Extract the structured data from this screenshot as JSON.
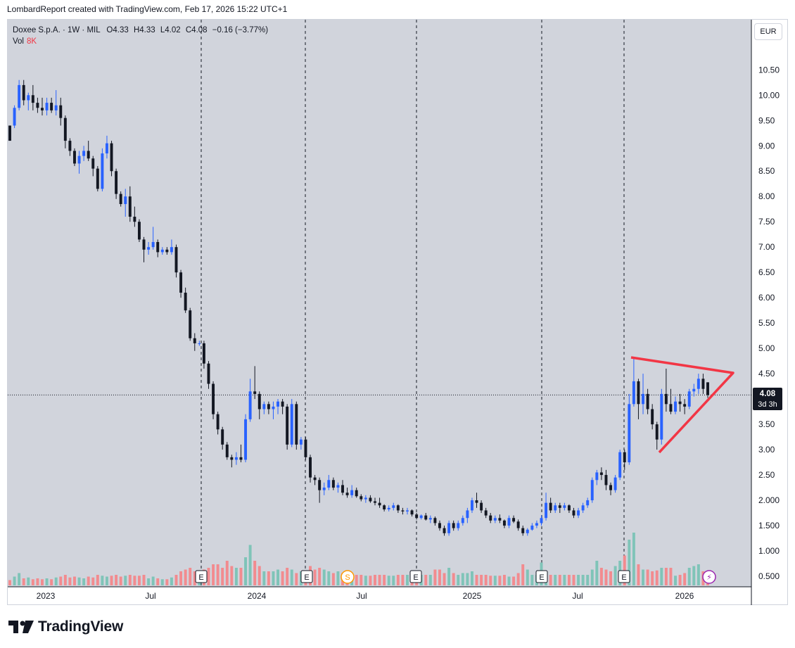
{
  "header": {
    "created_by": "LombardReport created with TradingView.com, Feb 17, 2026 15:22 UTC+1"
  },
  "legend": {
    "symbol": "Doxee S.p.A. · 1W · MIL",
    "open_label": "O",
    "open": "4.33",
    "high_label": "H",
    "high": "4.33",
    "low_label": "L",
    "low": "4.02",
    "close_label": "C",
    "close": "4.08",
    "change": "−0.16 (−3.77%)",
    "vol_label": "Vol",
    "vol_value": "8K"
  },
  "currency_button": "EUR",
  "price_tag": {
    "price": "4.08",
    "countdown": "3d 3h"
  },
  "brand": {
    "name": "TradingView"
  },
  "colors": {
    "up": "#2962ff",
    "down": "#131722",
    "vol_up": "#7fc4b8",
    "vol_down": "#f28b8f",
    "pattern": "#f23645",
    "grid_bg": "#d1d4dc"
  },
  "chart_data": {
    "type": "candlestick",
    "title": "Doxee S.p.A. · 1W · MIL",
    "timeframe": "1W",
    "currency": "EUR",
    "y_range": [
      0.3,
      11.1
    ],
    "y_ticks": [
      "0.500",
      "1.000",
      "1.500",
      "2.000",
      "2.50",
      "3.00",
      "3.50",
      "4.00",
      "4.50",
      "5.00",
      "5.50",
      "6.00",
      "6.50",
      "7.00",
      "7.50",
      "8.00",
      "8.50",
      "9.00",
      "9.50",
      "10.00",
      "10.50"
    ],
    "x_ticks": [
      "2023",
      "Jul",
      "2024",
      "Jul",
      "2025",
      "Jul",
      "2026"
    ],
    "last_price": 4.08,
    "events": [
      {
        "type": "earnings",
        "label": "E",
        "date": "2023-09"
      },
      {
        "type": "earnings",
        "label": "E",
        "date": "2024-03"
      },
      {
        "type": "dividend",
        "label": "S",
        "date": "2024-05"
      },
      {
        "type": "earnings",
        "label": "E",
        "date": "2024-09"
      },
      {
        "type": "earnings",
        "label": "E",
        "date": "2025-03"
      },
      {
        "type": "earnings",
        "label": "E",
        "date": "2025-09"
      },
      {
        "type": "split",
        "label": "⚡",
        "date": "2026-02"
      }
    ],
    "pattern": {
      "type": "symmetrical triangle",
      "upper": [
        [
          4.8,
          "2025-09"
        ],
        [
          4.5,
          "2026-03"
        ]
      ],
      "lower": [
        [
          2.9,
          "2025-11"
        ],
        [
          4.5,
          "2026-03"
        ]
      ]
    },
    "candles": [
      [
        9.4,
        9.4,
        9.1,
        9.1,
        0.3
      ],
      [
        9.4,
        9.8,
        9.35,
        9.75,
        0.5
      ],
      [
        9.75,
        10.3,
        9.7,
        10.2,
        0.7
      ],
      [
        10.2,
        10.3,
        9.8,
        9.9,
        0.4
      ],
      [
        9.9,
        10.05,
        9.7,
        10.0,
        0.45
      ],
      [
        10.0,
        10.2,
        9.7,
        9.85,
        0.35
      ],
      [
        9.85,
        9.95,
        9.65,
        9.75,
        0.4
      ],
      [
        9.75,
        9.95,
        9.6,
        9.7,
        0.35
      ],
      [
        9.7,
        9.95,
        9.6,
        9.85,
        0.4
      ],
      [
        9.85,
        9.95,
        9.65,
        9.7,
        0.35
      ],
      [
        9.7,
        10.1,
        9.6,
        9.8,
        0.45
      ],
      [
        9.8,
        9.95,
        9.4,
        9.55,
        0.5
      ],
      [
        9.55,
        9.6,
        8.95,
        9.1,
        0.6
      ],
      [
        9.1,
        9.15,
        8.8,
        8.9,
        0.45
      ],
      [
        8.9,
        8.95,
        8.6,
        8.65,
        0.5
      ],
      [
        8.65,
        8.9,
        8.45,
        8.8,
        0.45
      ],
      [
        8.8,
        9.0,
        8.7,
        8.9,
        0.4
      ],
      [
        8.9,
        9.1,
        8.7,
        8.75,
        0.5
      ],
      [
        8.75,
        8.8,
        8.4,
        8.55,
        0.45
      ],
      [
        8.55,
        8.6,
        8.1,
        8.15,
        0.6
      ],
      [
        8.15,
        8.95,
        8.1,
        8.85,
        0.55
      ],
      [
        8.85,
        9.2,
        8.75,
        9.05,
        0.5
      ],
      [
        9.05,
        9.1,
        8.4,
        8.5,
        0.55
      ],
      [
        8.5,
        8.55,
        7.95,
        8.05,
        0.6
      ],
      [
        8.05,
        8.1,
        7.8,
        7.85,
        0.5
      ],
      [
        7.85,
        8.15,
        7.6,
        8.0,
        0.55
      ],
      [
        8.0,
        8.2,
        7.5,
        7.6,
        0.6
      ],
      [
        7.6,
        7.8,
        7.4,
        7.5,
        0.55
      ],
      [
        7.5,
        7.55,
        7.1,
        7.15,
        0.55
      ],
      [
        7.15,
        7.2,
        6.7,
        6.95,
        0.6
      ],
      [
        6.95,
        7.1,
        6.85,
        7.0,
        0.4
      ],
      [
        7.0,
        7.4,
        6.95,
        7.1,
        0.5
      ],
      [
        7.1,
        7.15,
        6.8,
        6.9,
        0.4
      ],
      [
        6.9,
        7.0,
        6.85,
        6.95,
        0.35
      ],
      [
        6.95,
        7.0,
        6.85,
        6.9,
        0.35
      ],
      [
        6.9,
        7.15,
        6.85,
        7.0,
        0.45
      ],
      [
        7.0,
        7.05,
        6.4,
        6.5,
        0.6
      ],
      [
        6.5,
        6.55,
        6.0,
        6.1,
        0.8
      ],
      [
        6.1,
        6.2,
        5.7,
        5.75,
        0.9
      ],
      [
        5.75,
        5.8,
        5.15,
        5.2,
        1.0
      ],
      [
        5.2,
        5.3,
        4.95,
        5.1,
        0.8
      ],
      [
        5.1,
        5.15,
        5.05,
        5.1,
        0.6
      ],
      [
        5.1,
        5.15,
        4.6,
        4.7,
        0.9
      ],
      [
        4.7,
        4.75,
        4.2,
        4.3,
        1.0
      ],
      [
        4.3,
        4.35,
        3.6,
        3.7,
        1.2
      ],
      [
        3.7,
        3.75,
        3.3,
        3.4,
        1.2
      ],
      [
        3.4,
        3.45,
        3.0,
        3.1,
        1.0
      ],
      [
        3.1,
        3.15,
        2.8,
        2.85,
        1.4
      ],
      [
        2.85,
        2.9,
        2.65,
        2.8,
        1.1
      ],
      [
        2.8,
        2.95,
        2.7,
        2.85,
        1.0
      ],
      [
        2.85,
        3.1,
        2.75,
        2.8,
        1.0
      ],
      [
        2.8,
        3.7,
        2.75,
        3.6,
        1.6
      ],
      [
        3.6,
        4.4,
        3.55,
        4.15,
        2.3
      ],
      [
        4.15,
        4.65,
        4.0,
        4.1,
        1.4
      ],
      [
        4.1,
        4.15,
        3.6,
        3.8,
        1.1
      ],
      [
        3.8,
        3.95,
        3.7,
        3.9,
        0.8
      ],
      [
        3.9,
        3.95,
        3.7,
        3.8,
        0.8
      ],
      [
        3.8,
        3.95,
        3.6,
        3.85,
        0.8
      ],
      [
        3.85,
        4.0,
        3.7,
        3.95,
        0.9
      ],
      [
        3.95,
        4.0,
        3.7,
        3.85,
        0.8
      ],
      [
        3.85,
        3.9,
        3.0,
        3.1,
        1.0
      ],
      [
        3.1,
        4.0,
        3.05,
        3.9,
        0.9
      ],
      [
        3.9,
        3.95,
        3.0,
        3.1,
        0.7
      ],
      [
        3.1,
        3.25,
        3.0,
        3.2,
        0.8
      ],
      [
        3.2,
        3.25,
        2.8,
        2.85,
        0.8
      ],
      [
        2.85,
        2.9,
        2.35,
        2.45,
        1.1
      ],
      [
        2.45,
        2.5,
        2.3,
        2.4,
        0.9
      ],
      [
        2.4,
        2.45,
        1.95,
        2.2,
        1.0
      ],
      [
        2.2,
        2.35,
        2.1,
        2.25,
        0.9
      ],
      [
        2.25,
        2.5,
        2.2,
        2.4,
        0.8
      ],
      [
        2.4,
        2.45,
        2.2,
        2.25,
        0.7
      ],
      [
        2.25,
        2.35,
        2.15,
        2.3,
        0.8
      ],
      [
        2.3,
        2.4,
        2.1,
        2.15,
        0.7
      ],
      [
        2.15,
        2.25,
        2.05,
        2.1,
        0.6
      ],
      [
        2.1,
        2.3,
        2.05,
        2.2,
        0.6
      ],
      [
        2.2,
        2.25,
        2.05,
        2.08,
        0.6
      ],
      [
        2.08,
        2.12,
        1.98,
        2.02,
        0.6
      ],
      [
        2.02,
        2.1,
        1.95,
        2.05,
        0.55
      ],
      [
        2.05,
        2.1,
        1.95,
        1.98,
        0.55
      ],
      [
        1.98,
        2.05,
        1.9,
        1.95,
        0.6
      ],
      [
        1.95,
        2.05,
        1.85,
        1.9,
        0.6
      ],
      [
        1.9,
        1.92,
        1.78,
        1.82,
        0.6
      ],
      [
        1.82,
        1.9,
        1.78,
        1.85,
        0.55
      ],
      [
        1.85,
        1.95,
        1.8,
        1.9,
        0.55
      ],
      [
        1.9,
        1.92,
        1.75,
        1.8,
        0.6
      ],
      [
        1.8,
        1.85,
        1.72,
        1.78,
        0.6
      ],
      [
        1.78,
        1.85,
        1.72,
        1.8,
        0.6
      ],
      [
        1.8,
        1.82,
        1.68,
        1.72,
        0.6
      ],
      [
        1.72,
        1.75,
        1.62,
        1.65,
        0.6
      ],
      [
        1.65,
        1.72,
        1.62,
        1.7,
        0.6
      ],
      [
        1.7,
        1.75,
        1.6,
        1.62,
        0.6
      ],
      [
        1.62,
        1.7,
        1.55,
        1.65,
        0.6
      ],
      [
        1.65,
        1.68,
        1.5,
        1.55,
        0.9
      ],
      [
        1.55,
        1.6,
        1.4,
        1.45,
        0.9
      ],
      [
        1.45,
        1.5,
        1.3,
        1.35,
        0.7
      ],
      [
        1.35,
        1.6,
        1.3,
        1.55,
        1.0
      ],
      [
        1.55,
        1.6,
        1.4,
        1.45,
        0.7
      ],
      [
        1.45,
        1.6,
        1.4,
        1.55,
        0.6
      ],
      [
        1.55,
        1.7,
        1.5,
        1.65,
        0.7
      ],
      [
        1.65,
        1.85,
        1.55,
        1.8,
        0.7
      ],
      [
        1.8,
        2.05,
        1.75,
        2.0,
        0.8
      ],
      [
        2.0,
        2.15,
        1.85,
        1.95,
        0.6
      ],
      [
        1.95,
        2.0,
        1.75,
        1.8,
        0.6
      ],
      [
        1.8,
        1.85,
        1.65,
        1.7,
        0.6
      ],
      [
        1.7,
        1.75,
        1.55,
        1.6,
        0.55
      ],
      [
        1.6,
        1.7,
        1.55,
        1.65,
        0.55
      ],
      [
        1.65,
        1.72,
        1.55,
        1.6,
        0.55
      ],
      [
        1.6,
        1.62,
        1.45,
        1.5,
        0.6
      ],
      [
        1.5,
        1.7,
        1.45,
        1.65,
        0.5
      ],
      [
        1.65,
        1.7,
        1.55,
        1.58,
        0.5
      ],
      [
        1.58,
        1.62,
        1.4,
        1.45,
        0.7
      ],
      [
        1.45,
        1.5,
        1.3,
        1.35,
        1.2
      ],
      [
        1.35,
        1.45,
        1.3,
        1.42,
        0.9
      ],
      [
        1.42,
        1.55,
        1.4,
        1.5,
        0.6
      ],
      [
        1.5,
        1.6,
        1.45,
        1.55,
        0.6
      ],
      [
        1.55,
        1.7,
        1.5,
        1.65,
        1.3
      ],
      [
        1.65,
        2.15,
        1.6,
        1.95,
        0.7
      ],
      [
        1.95,
        2.05,
        1.75,
        1.8,
        0.6
      ],
      [
        1.8,
        1.95,
        1.75,
        1.9,
        0.6
      ],
      [
        1.9,
        1.95,
        1.75,
        1.85,
        0.6
      ],
      [
        1.85,
        1.95,
        1.8,
        1.9,
        0.6
      ],
      [
        1.9,
        1.92,
        1.75,
        1.8,
        0.6
      ],
      [
        1.8,
        1.85,
        1.65,
        1.7,
        0.6
      ],
      [
        1.7,
        1.85,
        1.65,
        1.8,
        0.6
      ],
      [
        1.8,
        1.95,
        1.75,
        1.9,
        0.6
      ],
      [
        1.9,
        2.05,
        1.85,
        2.0,
        0.6
      ],
      [
        2.0,
        2.45,
        1.95,
        2.4,
        0.9
      ],
      [
        2.4,
        2.6,
        2.3,
        2.55,
        1.4
      ],
      [
        2.55,
        2.65,
        2.4,
        2.5,
        1.0
      ],
      [
        2.5,
        2.6,
        2.2,
        2.3,
        0.9
      ],
      [
        2.3,
        2.35,
        2.1,
        2.2,
        0.8
      ],
      [
        2.2,
        2.5,
        2.15,
        2.45,
        1.1
      ],
      [
        2.45,
        3.0,
        2.4,
        2.95,
        1.4
      ],
      [
        2.95,
        3.0,
        2.6,
        2.75,
        1.7
      ],
      [
        2.75,
        4.1,
        2.7,
        3.9,
        2.6
      ],
      [
        3.9,
        4.8,
        3.85,
        4.35,
        3.0
      ],
      [
        4.35,
        4.4,
        3.6,
        3.9,
        1.2
      ],
      [
        3.9,
        4.5,
        3.7,
        4.1,
        0.9
      ],
      [
        4.1,
        4.2,
        3.7,
        3.8,
        0.9
      ],
      [
        3.8,
        3.9,
        3.4,
        3.5,
        0.8
      ],
      [
        3.5,
        3.55,
        3.0,
        3.2,
        0.85
      ],
      [
        3.2,
        4.2,
        3.1,
        4.1,
        1.0
      ],
      [
        4.1,
        4.6,
        3.75,
        3.9,
        1.0
      ],
      [
        3.9,
        4.2,
        3.7,
        3.75,
        1.0
      ],
      [
        3.75,
        4.05,
        3.7,
        3.95,
        0.55
      ],
      [
        3.95,
        4.1,
        3.75,
        3.9,
        0.6
      ],
      [
        3.9,
        4.0,
        3.7,
        3.85,
        0.7
      ],
      [
        3.85,
        4.2,
        3.8,
        4.15,
        1.0
      ],
      [
        4.15,
        4.3,
        4.05,
        4.2,
        1.1
      ],
      [
        4.2,
        4.5,
        4.1,
        4.4,
        1.2
      ],
      [
        4.4,
        4.5,
        4.1,
        4.2,
        0.8
      ],
      [
        4.33,
        4.33,
        4.02,
        4.08,
        0.55
      ]
    ]
  }
}
